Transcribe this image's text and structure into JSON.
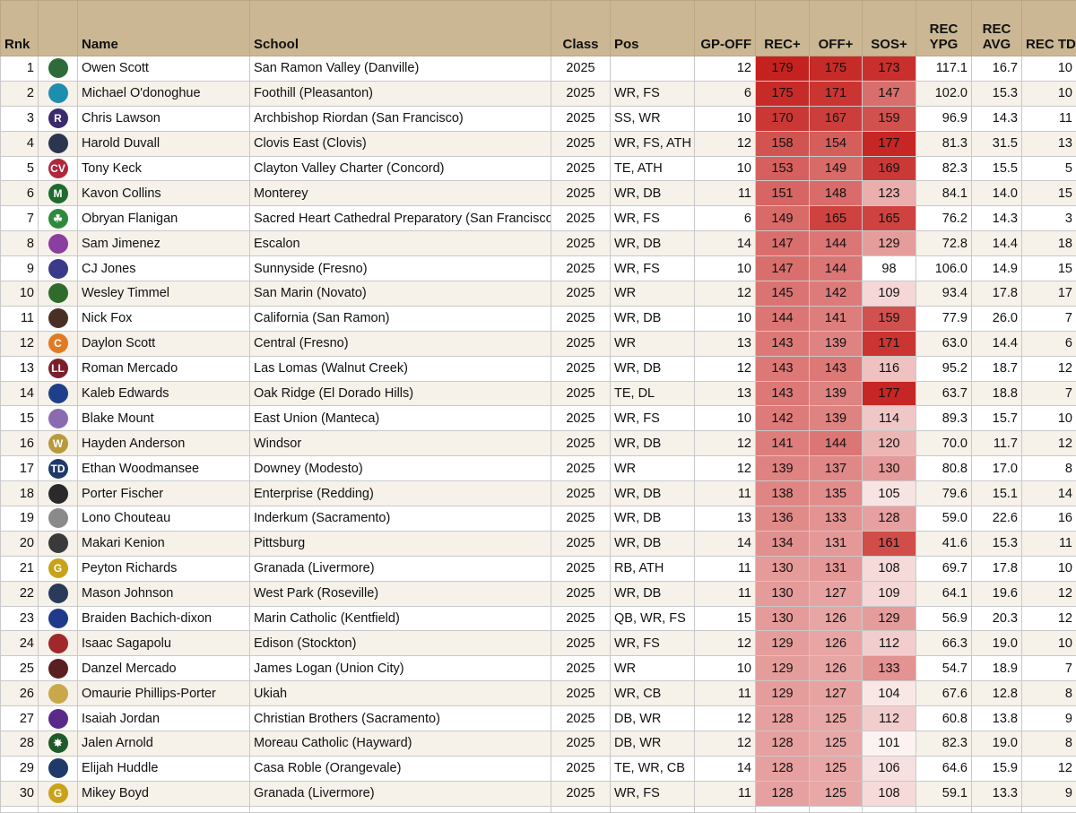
{
  "headers": {
    "rnk": "Rnk",
    "name": "Name",
    "school": "School",
    "class": "Class",
    "pos": "Pos",
    "gp_off": "GP-OFF",
    "rec_plus": "REC+",
    "off_plus": "OFF+",
    "sos_plus": "SOS+",
    "rec_ypg_1": "REC",
    "rec_ypg_2": "YPG",
    "rec_avg_1": "REC",
    "rec_avg_2": "AVG",
    "rec_td": "REC TD"
  },
  "rows": [
    {
      "rnk": "1",
      "logo": "round-crest-logo",
      "logo_color": "#2e6b3a",
      "logo_text": "",
      "name": "Owen Scott",
      "school": "San Ramon Valley (Danville)",
      "class": "2025",
      "pos": "",
      "gp": "12",
      "rec": "179",
      "off": "175",
      "sos": "173",
      "ypg": "117.1",
      "avg": "16.7",
      "td": "10"
    },
    {
      "rnk": "2",
      "logo": "falcon-logo",
      "logo_color": "#1c8fb0",
      "logo_text": "",
      "name": "Michael O'donoghue",
      "school": "Foothill (Pleasanton)",
      "class": "2025",
      "pos": "WR, FS",
      "gp": "6",
      "rec": "175",
      "off": "171",
      "sos": "147",
      "ypg": "102.0",
      "avg": "15.3",
      "td": "10"
    },
    {
      "rnk": "3",
      "logo": "letter-r-logo",
      "logo_color": "#3a2a6e",
      "logo_text": "R",
      "name": "Chris Lawson",
      "school": "Archbishop Riordan (San Francisco)",
      "class": "2025",
      "pos": "SS, WR",
      "gp": "10",
      "rec": "170",
      "off": "167",
      "sos": "159",
      "ypg": "96.9",
      "avg": "14.3",
      "td": "11"
    },
    {
      "rnk": "4",
      "logo": "cougar-logo",
      "logo_color": "#2a3550",
      "logo_text": "",
      "name": "Harold Duvall",
      "school": "Clovis East (Clovis)",
      "class": "2025",
      "pos": "WR, FS, ATH",
      "gp": "12",
      "rec": "158",
      "off": "154",
      "sos": "177",
      "ypg": "81.3",
      "avg": "31.5",
      "td": "13"
    },
    {
      "rnk": "5",
      "logo": "letters-cv-logo",
      "logo_color": "#b0263a",
      "logo_text": "CV",
      "name": "Tony Keck",
      "school": "Clayton Valley Charter (Concord)",
      "class": "2025",
      "pos": "TE, ATH",
      "gp": "10",
      "rec": "153",
      "off": "149",
      "sos": "169",
      "ypg": "82.3",
      "avg": "15.5",
      "td": "5"
    },
    {
      "rnk": "6",
      "logo": "letter-m-logo",
      "logo_color": "#1f6b2f",
      "logo_text": "M",
      "name": "Kavon Collins",
      "school": "Monterey",
      "class": "2025",
      "pos": "WR, DB",
      "gp": "11",
      "rec": "151",
      "off": "148",
      "sos": "123",
      "ypg": "84.1",
      "avg": "14.0",
      "td": "15"
    },
    {
      "rnk": "7",
      "logo": "shamrock-logo",
      "logo_color": "#2f8a3c",
      "logo_text": "☘",
      "name": "Obryan Flanigan",
      "school": "Sacred Heart Cathedral Preparatory (San Francisco)",
      "class": "2025",
      "pos": "WR, FS",
      "gp": "6",
      "rec": "149",
      "off": "165",
      "sos": "165",
      "ypg": "76.2",
      "avg": "14.3",
      "td": "3"
    },
    {
      "rnk": "8",
      "logo": "cougar-logo",
      "logo_color": "#8a3fa0",
      "logo_text": "",
      "name": "Sam Jimenez",
      "school": "Escalon",
      "class": "2025",
      "pos": "WR, DB",
      "gp": "14",
      "rec": "147",
      "off": "144",
      "sos": "129",
      "ypg": "72.8",
      "avg": "14.4",
      "td": "18"
    },
    {
      "rnk": "9",
      "logo": "mascot-logo",
      "logo_color": "#3a3a8a",
      "logo_text": "",
      "name": "CJ Jones",
      "school": "Sunnyside (Fresno)",
      "class": "2025",
      "pos": "WR, FS",
      "gp": "10",
      "rec": "147",
      "off": "144",
      "sos": "98",
      "ypg": "106.0",
      "avg": "14.9",
      "td": "15"
    },
    {
      "rnk": "10",
      "logo": "warrior-logo",
      "logo_color": "#2f6b2a",
      "logo_text": "",
      "name": "Wesley Timmel",
      "school": "San Marin (Novato)",
      "class": "2025",
      "pos": "WR",
      "gp": "12",
      "rec": "145",
      "off": "142",
      "sos": "109",
      "ypg": "93.4",
      "avg": "17.8",
      "td": "17"
    },
    {
      "rnk": "11",
      "logo": "bear-logo",
      "logo_color": "#4a3024",
      "logo_text": "",
      "name": "Nick Fox",
      "school": "California (San Ramon)",
      "class": "2025",
      "pos": "WR, DB",
      "gp": "10",
      "rec": "144",
      "off": "141",
      "sos": "159",
      "ypg": "77.9",
      "avg": "26.0",
      "td": "7"
    },
    {
      "rnk": "12",
      "logo": "letter-c-logo",
      "logo_color": "#e07b24",
      "logo_text": "C",
      "name": "Daylon Scott",
      "school": "Central (Fresno)",
      "class": "2025",
      "pos": "WR",
      "gp": "13",
      "rec": "143",
      "off": "139",
      "sos": "171",
      "ypg": "63.0",
      "avg": "14.4",
      "td": "6"
    },
    {
      "rnk": "13",
      "logo": "letters-ll-logo",
      "logo_color": "#7a1f2a",
      "logo_text": "LL",
      "name": "Roman Mercado",
      "school": "Las Lomas (Walnut Creek)",
      "class": "2025",
      "pos": "WR, DB",
      "gp": "12",
      "rec": "143",
      "off": "143",
      "sos": "116",
      "ypg": "95.2",
      "avg": "18.7",
      "td": "12"
    },
    {
      "rnk": "14",
      "logo": "trojan-helmet-logo",
      "logo_color": "#1f3f8a",
      "logo_text": "",
      "name": "Kaleb Edwards",
      "school": "Oak Ridge (El Dorado Hills)",
      "class": "2025",
      "pos": "TE, DL",
      "gp": "13",
      "rec": "143",
      "off": "139",
      "sos": "177",
      "ypg": "63.7",
      "avg": "18.8",
      "td": "7"
    },
    {
      "rnk": "15",
      "logo": "mascot-logo",
      "logo_color": "#8a6ab0",
      "logo_text": "",
      "name": "Blake Mount",
      "school": "East Union (Manteca)",
      "class": "2025",
      "pos": "WR, FS",
      "gp": "10",
      "rec": "142",
      "off": "139",
      "sos": "114",
      "ypg": "89.3",
      "avg": "15.7",
      "td": "10"
    },
    {
      "rnk": "16",
      "logo": "letter-w-logo",
      "logo_color": "#b89a3a",
      "logo_text": "W",
      "name": "Hayden Anderson",
      "school": "Windsor",
      "class": "2025",
      "pos": "WR, DB",
      "gp": "12",
      "rec": "141",
      "off": "144",
      "sos": "120",
      "ypg": "70.0",
      "avg": "11.7",
      "td": "12"
    },
    {
      "rnk": "17",
      "logo": "letters-td-logo",
      "logo_color": "#1f3a6a",
      "logo_text": "TD",
      "name": "Ethan Woodmansee",
      "school": "Downey (Modesto)",
      "class": "2025",
      "pos": "WR",
      "gp": "12",
      "rec": "139",
      "off": "137",
      "sos": "130",
      "ypg": "80.8",
      "avg": "17.0",
      "td": "8"
    },
    {
      "rnk": "18",
      "logo": "wolf-logo",
      "logo_color": "#2a2a2a",
      "logo_text": "",
      "name": "Porter Fischer",
      "school": "Enterprise (Redding)",
      "class": "2025",
      "pos": "WR, DB",
      "gp": "11",
      "rec": "138",
      "off": "135",
      "sos": "105",
      "ypg": "79.6",
      "avg": "15.1",
      "td": "14"
    },
    {
      "rnk": "19",
      "logo": "round-crest-logo",
      "logo_color": "#8a8a8a",
      "logo_text": "",
      "name": "Lono Chouteau",
      "school": "Inderkum (Sacramento)",
      "class": "2025",
      "pos": "WR, DB",
      "gp": "13",
      "rec": "136",
      "off": "133",
      "sos": "128",
      "ypg": "59.0",
      "avg": "22.6",
      "td": "16"
    },
    {
      "rnk": "20",
      "logo": "pirate-logo",
      "logo_color": "#3a3a3a",
      "logo_text": "",
      "name": "Makari Kenion",
      "school": "Pittsburg",
      "class": "2025",
      "pos": "WR, DB",
      "gp": "14",
      "rec": "134",
      "off": "131",
      "sos": "161",
      "ypg": "41.6",
      "avg": "15.3",
      "td": "11"
    },
    {
      "rnk": "21",
      "logo": "letter-g-logo",
      "logo_color": "#c9a21a",
      "logo_text": "G",
      "name": "Peyton Richards",
      "school": "Granada (Livermore)",
      "class": "2025",
      "pos": "RB, ATH",
      "gp": "11",
      "rec": "130",
      "off": "131",
      "sos": "108",
      "ypg": "69.7",
      "avg": "17.8",
      "td": "10"
    },
    {
      "rnk": "22",
      "logo": "panther-logo",
      "logo_color": "#2a3a5a",
      "logo_text": "",
      "name": "Mason Johnson",
      "school": "West Park (Roseville)",
      "class": "2025",
      "pos": "WR, DB",
      "gp": "11",
      "rec": "130",
      "off": "127",
      "sos": "109",
      "ypg": "64.1",
      "avg": "19.6",
      "td": "12"
    },
    {
      "rnk": "23",
      "logo": "paw-logo",
      "logo_color": "#1f3a8a",
      "logo_text": "",
      "name": "Braiden Bachich-dixon",
      "school": "Marin Catholic (Kentfield)",
      "class": "2025",
      "pos": "QB, WR, FS",
      "gp": "15",
      "rec": "130",
      "off": "126",
      "sos": "129",
      "ypg": "56.9",
      "avg": "20.3",
      "td": "12"
    },
    {
      "rnk": "24",
      "logo": "round-crest-logo",
      "logo_color": "#a0282a",
      "logo_text": "",
      "name": "Isaac Sagapolu",
      "school": "Edison (Stockton)",
      "class": "2025",
      "pos": "WR, FS",
      "gp": "12",
      "rec": "129",
      "off": "126",
      "sos": "112",
      "ypg": "66.3",
      "avg": "19.0",
      "td": "10"
    },
    {
      "rnk": "25",
      "logo": "round-crest-logo",
      "logo_color": "#5a1f1f",
      "logo_text": "",
      "name": "Danzel Mercado",
      "school": "James Logan (Union City)",
      "class": "2025",
      "pos": "WR",
      "gp": "10",
      "rec": "129",
      "off": "126",
      "sos": "133",
      "ypg": "54.7",
      "avg": "18.9",
      "td": "7"
    },
    {
      "rnk": "26",
      "logo": "wildcat-logo",
      "logo_color": "#c9a84a",
      "logo_text": "",
      "name": "Omaurie Phillips-Porter",
      "school": "Ukiah",
      "class": "2025",
      "pos": "WR, CB",
      "gp": "11",
      "rec": "129",
      "off": "127",
      "sos": "104",
      "ypg": "67.6",
      "avg": "12.8",
      "td": "8"
    },
    {
      "rnk": "27",
      "logo": "falcon-logo",
      "logo_color": "#5a2a8a",
      "logo_text": "",
      "name": "Isaiah Jordan",
      "school": "Christian Brothers (Sacramento)",
      "class": "2025",
      "pos": "DB, WR",
      "gp": "12",
      "rec": "128",
      "off": "125",
      "sos": "112",
      "ypg": "60.8",
      "avg": "13.8",
      "td": "9"
    },
    {
      "rnk": "28",
      "logo": "star-crest-logo",
      "logo_color": "#1f5a2a",
      "logo_text": "✸",
      "name": "Jalen Arnold",
      "school": "Moreau Catholic (Hayward)",
      "class": "2025",
      "pos": "DB, WR",
      "gp": "12",
      "rec": "128",
      "off": "125",
      "sos": "101",
      "ypg": "82.3",
      "avg": "19.0",
      "td": "8"
    },
    {
      "rnk": "29",
      "logo": "ram-logo",
      "logo_color": "#1f3a6a",
      "logo_text": "",
      "name": "Elijah Huddle",
      "school": "Casa Roble (Orangevale)",
      "class": "2025",
      "pos": "TE, WR, CB",
      "gp": "14",
      "rec": "128",
      "off": "125",
      "sos": "106",
      "ypg": "64.6",
      "avg": "15.9",
      "td": "12"
    },
    {
      "rnk": "30",
      "logo": "letter-g-logo",
      "logo_color": "#c9a21a",
      "logo_text": "G",
      "name": "Mikey Boyd",
      "school": "Granada (Livermore)",
      "class": "2025",
      "pos": "WR, FS",
      "gp": "11",
      "rec": "128",
      "off": "125",
      "sos": "108",
      "ypg": "59.1",
      "avg": "13.3",
      "td": "9"
    }
  ],
  "colors": {
    "header_bg": "#cbb794",
    "heat_low": "#ffffff",
    "heat_high": "#c5221f",
    "row_alt": "#f6f1e9"
  }
}
